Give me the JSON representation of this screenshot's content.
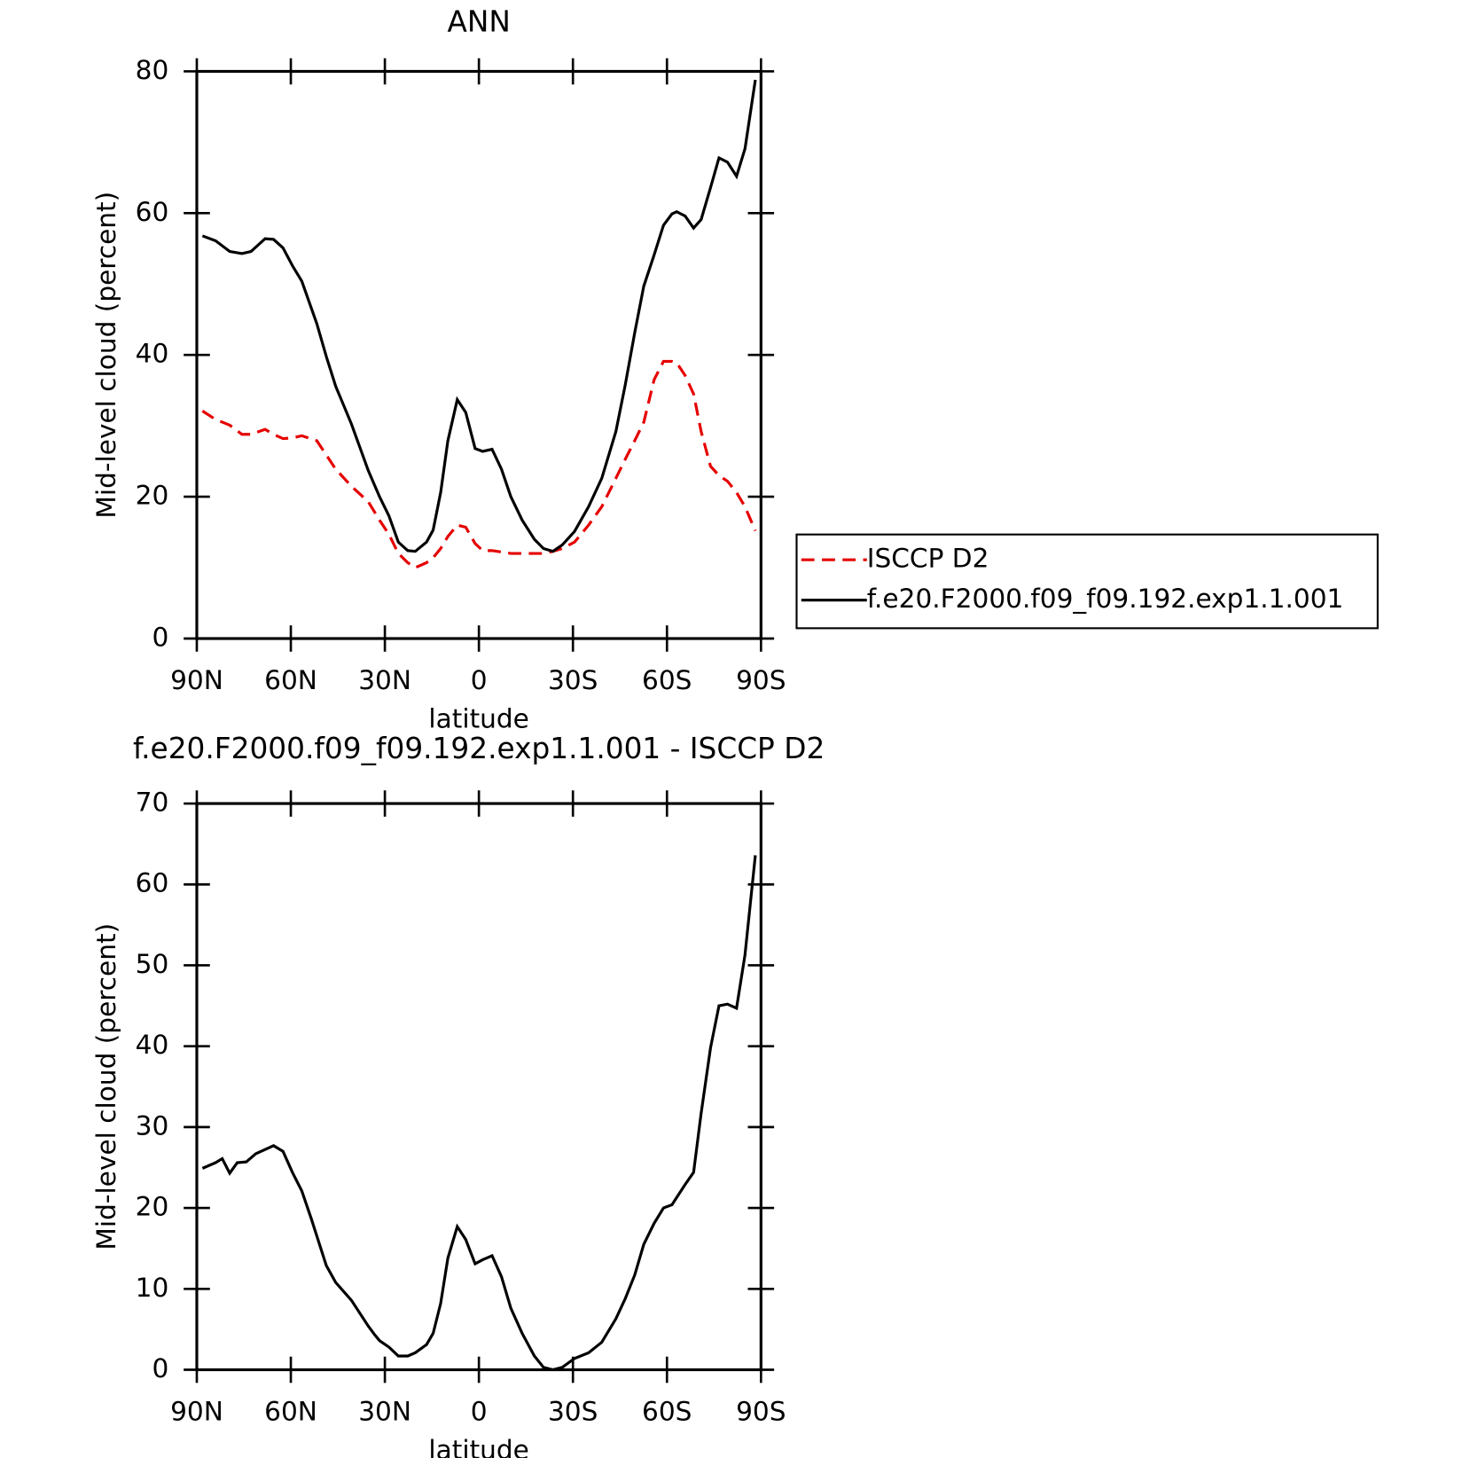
{
  "chart_data": [
    {
      "type": "line",
      "title": "ANN",
      "xlabel": "latitude",
      "ylabel": "Mid-level cloud (percent)",
      "xlim": [
        90,
        -90
      ],
      "xticks": [
        {
          "value": 90,
          "label": "90N"
        },
        {
          "value": 60,
          "label": "60N"
        },
        {
          "value": 30,
          "label": "30N"
        },
        0,
        {
          "value": -30,
          "label": "30S"
        },
        {
          "value": -60,
          "label": "60S"
        },
        {
          "value": -90,
          "label": "90S"
        }
      ],
      "ylim": [
        0,
        80
      ],
      "yticks": [
        0,
        20,
        40,
        60,
        80
      ],
      "legend": "right",
      "x": [
        88.2,
        84.0,
        79.5,
        75.6,
        72.7,
        68.2,
        65.5,
        62.5,
        59.5,
        56.5,
        51.7,
        48.7,
        45.7,
        40.7,
        35.3,
        31.7,
        28.7,
        25.7,
        22.7,
        20.3,
        16.7,
        14.6,
        12.2,
        9.9,
        6.9,
        4.2,
        1.2,
        -1.2,
        -4.2,
        -7.2,
        -10.2,
        -13.8,
        -17.7,
        -20.6,
        -23.6,
        -26.6,
        -30.5,
        -35.0,
        -39.2,
        -43.7,
        -46.7,
        -49.7,
        -52.6,
        -55.9,
        -58.9,
        -61.6,
        -63.1,
        -65.8,
        -68.5,
        -70.9,
        -73.9,
        -76.6,
        -79.3,
        -82.2,
        -84.9,
        -88.2
      ],
      "series": [
        {
          "name": "ISCCP D2",
          "color": "#e60000",
          "style": "dashed",
          "values": [
            32.1,
            30.9,
            30.1,
            28.8,
            28.8,
            29.5,
            28.8,
            28.2,
            28.3,
            28.6,
            27.9,
            25.9,
            23.9,
            21.5,
            19.3,
            16.7,
            14.7,
            12.0,
            10.7,
            10.0,
            10.7,
            11.4,
            12.7,
            14.4,
            16.0,
            15.7,
            13.4,
            12.4,
            12.4,
            12.2,
            12.0,
            12.0,
            12.0,
            12.0,
            12.3,
            12.7,
            13.6,
            16.0,
            18.6,
            22.6,
            25.3,
            27.9,
            30.5,
            36.5,
            39.1,
            39.1,
            38.9,
            37.1,
            34.5,
            29.2,
            24.3,
            23.0,
            22.2,
            20.6,
            18.6,
            15.2
          ]
        },
        {
          "name": "f.e20.F2000.f09_f09.192.exp1.1.001",
          "color": "#000000",
          "style": "solid",
          "values": [
            56.8,
            56.1,
            54.6,
            54.3,
            54.6,
            56.4,
            56.3,
            55.1,
            52.6,
            50.4,
            44.4,
            39.8,
            35.6,
            30.3,
            23.7,
            20.0,
            17.3,
            13.6,
            12.4,
            12.3,
            13.6,
            15.3,
            20.6,
            27.9,
            33.7,
            31.9,
            26.8,
            26.4,
            26.7,
            23.9,
            20.0,
            16.7,
            14.0,
            12.7,
            12.3,
            13.2,
            15.1,
            18.6,
            22.6,
            29.2,
            35.8,
            43.1,
            49.7,
            54.1,
            58.3,
            59.9,
            60.2,
            59.6,
            57.9,
            59.1,
            63.6,
            67.8,
            67.2,
            65.2,
            69.1,
            78.8
          ]
        }
      ]
    },
    {
      "type": "line",
      "title": "f.e20.F2000.f09_f09.192.exp1.1.001 - ISCCP D2",
      "xlabel": "latitude",
      "ylabel": "Mid-level cloud (percent)",
      "xlim": [
        90,
        -90
      ],
      "xticks": [
        {
          "value": 90,
          "label": "90N"
        },
        {
          "value": 60,
          "label": "60N"
        },
        {
          "value": 30,
          "label": "30N"
        },
        0,
        {
          "value": -30,
          "label": "30S"
        },
        {
          "value": -60,
          "label": "60S"
        },
        {
          "value": -90,
          "label": "90S"
        }
      ],
      "ylim": [
        0,
        70
      ],
      "yticks": [
        0,
        10,
        20,
        30,
        40,
        50,
        60,
        70
      ],
      "x": [
        88.2,
        84.0,
        81.9,
        79.5,
        77.1,
        74.2,
        71.2,
        65.5,
        62.5,
        59.5,
        56.5,
        53.5,
        48.7,
        45.7,
        40.7,
        35.3,
        33.2,
        31.7,
        28.7,
        25.7,
        22.7,
        20.3,
        16.7,
        14.6,
        12.2,
        9.9,
        6.9,
        4.2,
        1.2,
        -1.2,
        -4.2,
        -7.2,
        -10.2,
        -13.8,
        -17.7,
        -20.6,
        -23.6,
        -26.6,
        -30.5,
        -35.0,
        -39.2,
        -43.7,
        -46.7,
        -49.7,
        -52.6,
        -55.9,
        -58.9,
        -61.6,
        -63.1,
        -65.8,
        -68.5,
        -70.9,
        -73.9,
        -76.6,
        -79.3,
        -82.2,
        -84.9,
        -88.2
      ],
      "series": [
        {
          "color": "#000000",
          "style": "solid",
          "values": [
            24.9,
            25.6,
            26.1,
            24.3,
            25.6,
            25.7,
            26.7,
            27.7,
            27.0,
            24.4,
            22.1,
            18.7,
            12.9,
            10.8,
            8.6,
            5.4,
            4.3,
            3.6,
            2.8,
            1.7,
            1.7,
            2.1,
            3.1,
            4.5,
            8.2,
            13.8,
            17.7,
            16.1,
            13.1,
            13.6,
            14.1,
            11.5,
            7.6,
            4.5,
            1.7,
            0.3,
            0.0,
            0.3,
            1.4,
            2.1,
            3.4,
            6.3,
            8.8,
            11.7,
            15.5,
            18.1,
            20.0,
            20.4,
            21.3,
            22.9,
            24.4,
            31.7,
            39.8,
            45.0,
            45.2,
            44.7,
            51.3,
            63.6
          ]
        }
      ]
    }
  ]
}
